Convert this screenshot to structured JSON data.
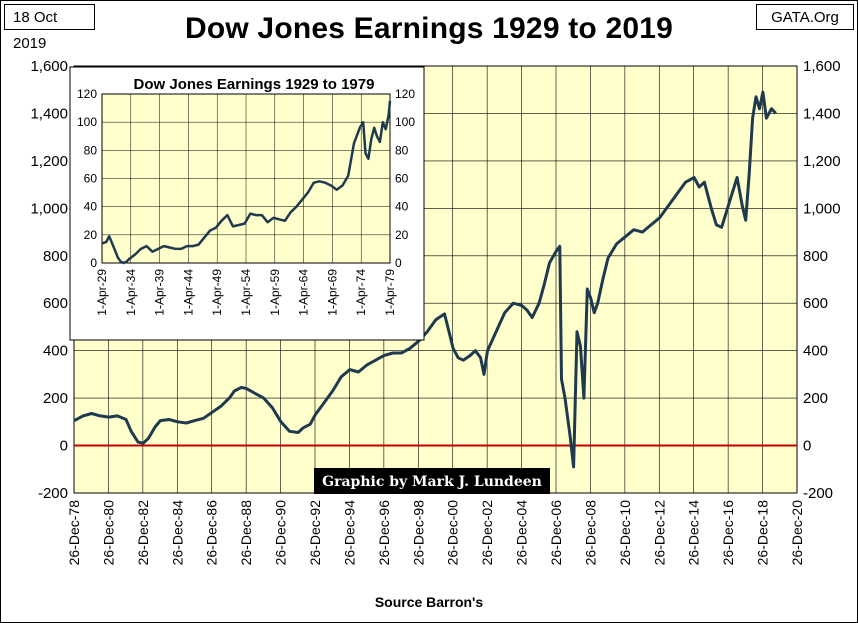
{
  "header": {
    "date": "18 Oct 2019",
    "title": "Dow Jones Earnings 1929 to 2019",
    "source": "GATA.Org"
  },
  "colors": {
    "plot_bg": "#ffffcc",
    "line": "#1f3a4f",
    "zero_line": "#c00000",
    "credit_bg": "#000000"
  },
  "credit": "Graphic by Mark J. Lundeen",
  "x_caption": "Source Barron's",
  "chart_data": [
    {
      "type": "line",
      "title": "Dow Jones Earnings 1929 to 2019",
      "xlabel": "Source Barron's",
      "ylabel": "",
      "ylim": [
        -200,
        1600
      ],
      "yticks": [
        "-200",
        "0",
        "200",
        "400",
        "600",
        "800",
        "1,000",
        "1,200",
        "1,400",
        "1,600"
      ],
      "ytick_values": [
        -200,
        0,
        200,
        400,
        600,
        800,
        1000,
        1200,
        1400,
        1600
      ],
      "xlim": [
        1978.98,
        2020.98
      ],
      "xticks": [
        "26-Dec-78",
        "26-Dec-80",
        "26-Dec-82",
        "26-Dec-84",
        "26-Dec-86",
        "26-Dec-88",
        "26-Dec-90",
        "26-Dec-92",
        "26-Dec-94",
        "26-Dec-96",
        "26-Dec-98",
        "26-Dec-00",
        "26-Dec-02",
        "26-Dec-04",
        "26-Dec-06",
        "26-Dec-08",
        "26-Dec-10",
        "26-Dec-12",
        "26-Dec-14",
        "26-Dec-16",
        "26-Dec-18",
        "26-Dec-20"
      ],
      "xtick_values": [
        1978.98,
        1980.98,
        1982.98,
        1984.98,
        1986.98,
        1988.98,
        1990.98,
        1992.98,
        1994.98,
        1996.98,
        1998.98,
        2000.98,
        2002.98,
        2004.98,
        2006.98,
        2008.98,
        2010.98,
        2012.98,
        2014.98,
        2016.98,
        2018.98,
        2020.98
      ],
      "grid": true,
      "secondary_y_axis": true,
      "zero_line": true,
      "series": [
        {
          "name": "",
          "x": [
            1979.0,
            1979.5,
            1980.0,
            1980.5,
            1981.0,
            1981.5,
            1982.0,
            1982.3,
            1982.7,
            1983.0,
            1983.3,
            1983.7,
            1984.0,
            1984.5,
            1985.0,
            1985.5,
            1986.0,
            1986.5,
            1987.0,
            1987.5,
            1988.0,
            1988.3,
            1988.7,
            1989.0,
            1989.5,
            1990.0,
            1990.5,
            1991.0,
            1991.5,
            1992.0,
            1992.3,
            1992.7,
            1993.0,
            1993.5,
            1994.0,
            1994.5,
            1995.0,
            1995.5,
            1996.0,
            1996.5,
            1997.0,
            1997.5,
            1998.0,
            1998.5,
            1999.0,
            1999.5,
            2000.0,
            2000.5,
            2000.8,
            2001.0,
            2001.3,
            2001.6,
            2002.0,
            2002.3,
            2002.6,
            2002.8,
            2003.0,
            2003.5,
            2004.0,
            2004.5,
            2005.0,
            2005.3,
            2005.6,
            2006.0,
            2006.3,
            2006.6,
            2007.0,
            2007.2,
            2007.3,
            2007.5,
            2007.8,
            2008.0,
            2008.2,
            2008.4,
            2008.6,
            2008.8,
            2009.0,
            2009.2,
            2009.4,
            2009.7,
            2010.0,
            2010.5,
            2011.0,
            2011.5,
            2012.0,
            2012.5,
            2013.0,
            2013.5,
            2014.0,
            2014.5,
            2015.0,
            2015.3,
            2015.6,
            2016.0,
            2016.3,
            2016.6,
            2016.9,
            2017.2,
            2017.5,
            2017.8,
            2018.0,
            2018.2,
            2018.4,
            2018.6,
            2018.8,
            2019.0,
            2019.2,
            2019.5,
            2019.75
          ],
          "values": [
            105,
            125,
            135,
            125,
            120,
            125,
            110,
            60,
            15,
            10,
            30,
            80,
            105,
            110,
            100,
            95,
            105,
            115,
            140,
            165,
            200,
            230,
            245,
            240,
            220,
            200,
            160,
            100,
            60,
            55,
            75,
            90,
            130,
            180,
            230,
            290,
            320,
            310,
            340,
            360,
            380,
            390,
            390,
            410,
            440,
            480,
            530,
            555,
            470,
            410,
            370,
            360,
            380,
            400,
            370,
            300,
            400,
            480,
            560,
            600,
            590,
            570,
            540,
            600,
            680,
            770,
            820,
            840,
            280,
            200,
            40,
            -90,
            480,
            420,
            200,
            660,
            620,
            560,
            600,
            700,
            790,
            850,
            880,
            910,
            900,
            930,
            960,
            1010,
            1060,
            1110,
            1130,
            1090,
            1110,
            1000,
            930,
            920,
            990,
            1060,
            1130,
            1010,
            950,
            1140,
            1380,
            1470,
            1420,
            1490,
            1380,
            1420,
            1400
          ]
        }
      ]
    },
    {
      "type": "line",
      "title": "Dow Jones Earnings 1929 to 1979",
      "xlabel": "",
      "ylabel": "",
      "ylim": [
        0,
        120
      ],
      "yticks": [
        "0",
        "20",
        "40",
        "60",
        "80",
        "100",
        "120"
      ],
      "ytick_values": [
        0,
        20,
        40,
        60,
        80,
        100,
        120
      ],
      "xlim": [
        1929.25,
        1979.25
      ],
      "xticks": [
        "1-Apr-29",
        "1-Apr-34",
        "1-Apr-39",
        "1-Apr-44",
        "1-Apr-49",
        "1-Apr-54",
        "1-Apr-59",
        "1-Apr-64",
        "1-Apr-69",
        "1-Apr-74",
        "1-Apr-79"
      ],
      "xtick_values": [
        1929.25,
        1934.25,
        1939.25,
        1944.25,
        1949.25,
        1954.25,
        1959.25,
        1964.25,
        1969.25,
        1974.25,
        1979.25
      ],
      "grid": true,
      "secondary_y_axis": true,
      "legend": "none",
      "series": [
        {
          "name": "",
          "x": [
            1929.3,
            1930.0,
            1930.5,
            1931.0,
            1931.5,
            1932.0,
            1932.5,
            1933.0,
            1933.5,
            1934.0,
            1935.0,
            1936.0,
            1937.0,
            1938.0,
            1939.0,
            1940.0,
            1941.0,
            1942.0,
            1943.0,
            1944.0,
            1945.0,
            1946.0,
            1947.0,
            1948.0,
            1949.0,
            1950.0,
            1951.0,
            1952.0,
            1953.0,
            1954.0,
            1955.0,
            1956.0,
            1957.0,
            1958.0,
            1959.0,
            1960.0,
            1961.0,
            1962.0,
            1963.0,
            1964.0,
            1965.0,
            1966.0,
            1967.0,
            1968.0,
            1969.0,
            1970.0,
            1971.0,
            1972.0,
            1973.0,
            1974.0,
            1974.6,
            1975.0,
            1975.5,
            1976.0,
            1976.5,
            1977.0,
            1977.5,
            1978.0,
            1978.5,
            1979.0,
            1979.25
          ],
          "values": [
            14,
            15,
            19,
            14,
            9,
            4,
            1,
            0,
            1,
            3,
            6,
            10,
            12,
            8,
            10,
            12,
            11,
            10,
            10,
            12,
            12,
            13,
            18,
            23,
            25,
            30,
            34,
            26,
            27,
            28,
            35,
            34,
            34,
            29,
            32,
            31,
            30,
            36,
            40,
            45,
            50,
            57,
            58,
            57,
            55,
            52,
            55,
            62,
            85,
            96,
            100,
            78,
            74,
            88,
            96,
            90,
            86,
            100,
            95,
            105,
            115
          ]
        }
      ]
    }
  ]
}
